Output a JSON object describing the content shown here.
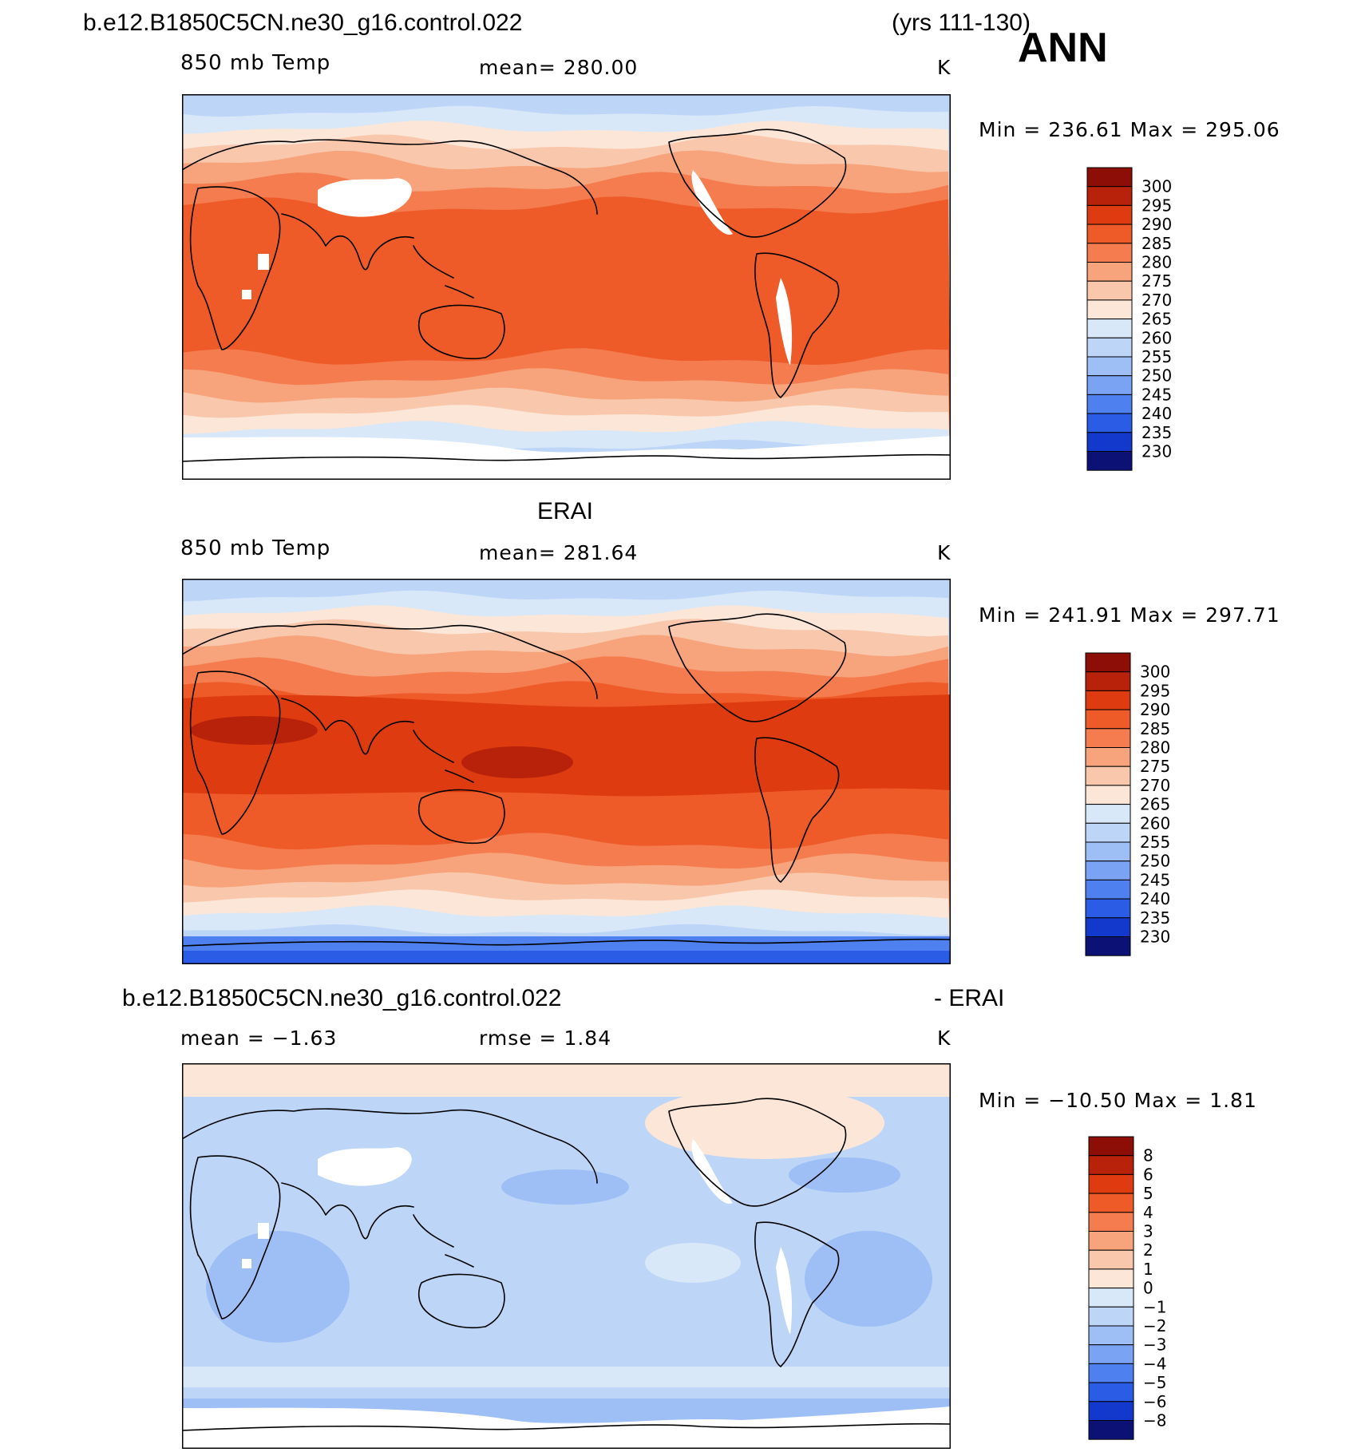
{
  "header": {
    "case_name": "b.e12.B1850C5CN.ne30_g16.control.022",
    "years": "(yrs 111-130)",
    "season": "ANN"
  },
  "colors": {
    "warm": [
      "#fbe6d7",
      "#f9c7ab",
      "#f7a37b",
      "#f47c4f",
      "#ee5b28",
      "#de3c10",
      "#b8220b",
      "#8c0e07"
    ],
    "cool": [
      "#d8e8f8",
      "#bdd5f7",
      "#9dbff6",
      "#7aa4f3",
      "#4f80ef",
      "#2b5ce6",
      "#1238cc",
      "#0a1f9e",
      "#0c1176"
    ],
    "coastline": "#000000",
    "missing": "#ffffff"
  },
  "panels": [
    {
      "id": "model",
      "title": "",
      "variable": "850 mb Temp",
      "stat_left": "",
      "stat_mid": "mean=  280.00",
      "units": "K",
      "range_text": "Min  =  236.61  Max  =  295.06",
      "colorbar_levels": [
        "300",
        "295",
        "290",
        "285",
        "280",
        "275",
        "270",
        "265",
        "260",
        "255",
        "250",
        "245",
        "240",
        "235",
        "230"
      ]
    },
    {
      "id": "obs",
      "title": "ERAI",
      "variable": "850 mb Temp",
      "stat_left": "",
      "stat_mid": "mean=  281.64",
      "units": "K",
      "range_text": "Min  =  241.91  Max  =  297.71",
      "colorbar_levels": [
        "300",
        "295",
        "290",
        "285",
        "280",
        "275",
        "270",
        "265",
        "260",
        "255",
        "250",
        "245",
        "240",
        "235",
        "230"
      ]
    },
    {
      "id": "diff",
      "title_left": "b.e12.B1850C5CN.ne30_g16.control.022",
      "title_right": "- ERAI",
      "variable": "",
      "stat_left": "mean  =    −1.63",
      "stat_mid": "rmse  =     1.84",
      "units": "K",
      "range_text": "Min  =  −10.50  Max  =     1.81",
      "colorbar_levels": [
        "8",
        "6",
        "5",
        "4",
        "3",
        "2",
        "1",
        "0",
        "−1",
        "−2",
        "−3",
        "−4",
        "−5",
        "−6",
        "−8"
      ]
    }
  ]
}
